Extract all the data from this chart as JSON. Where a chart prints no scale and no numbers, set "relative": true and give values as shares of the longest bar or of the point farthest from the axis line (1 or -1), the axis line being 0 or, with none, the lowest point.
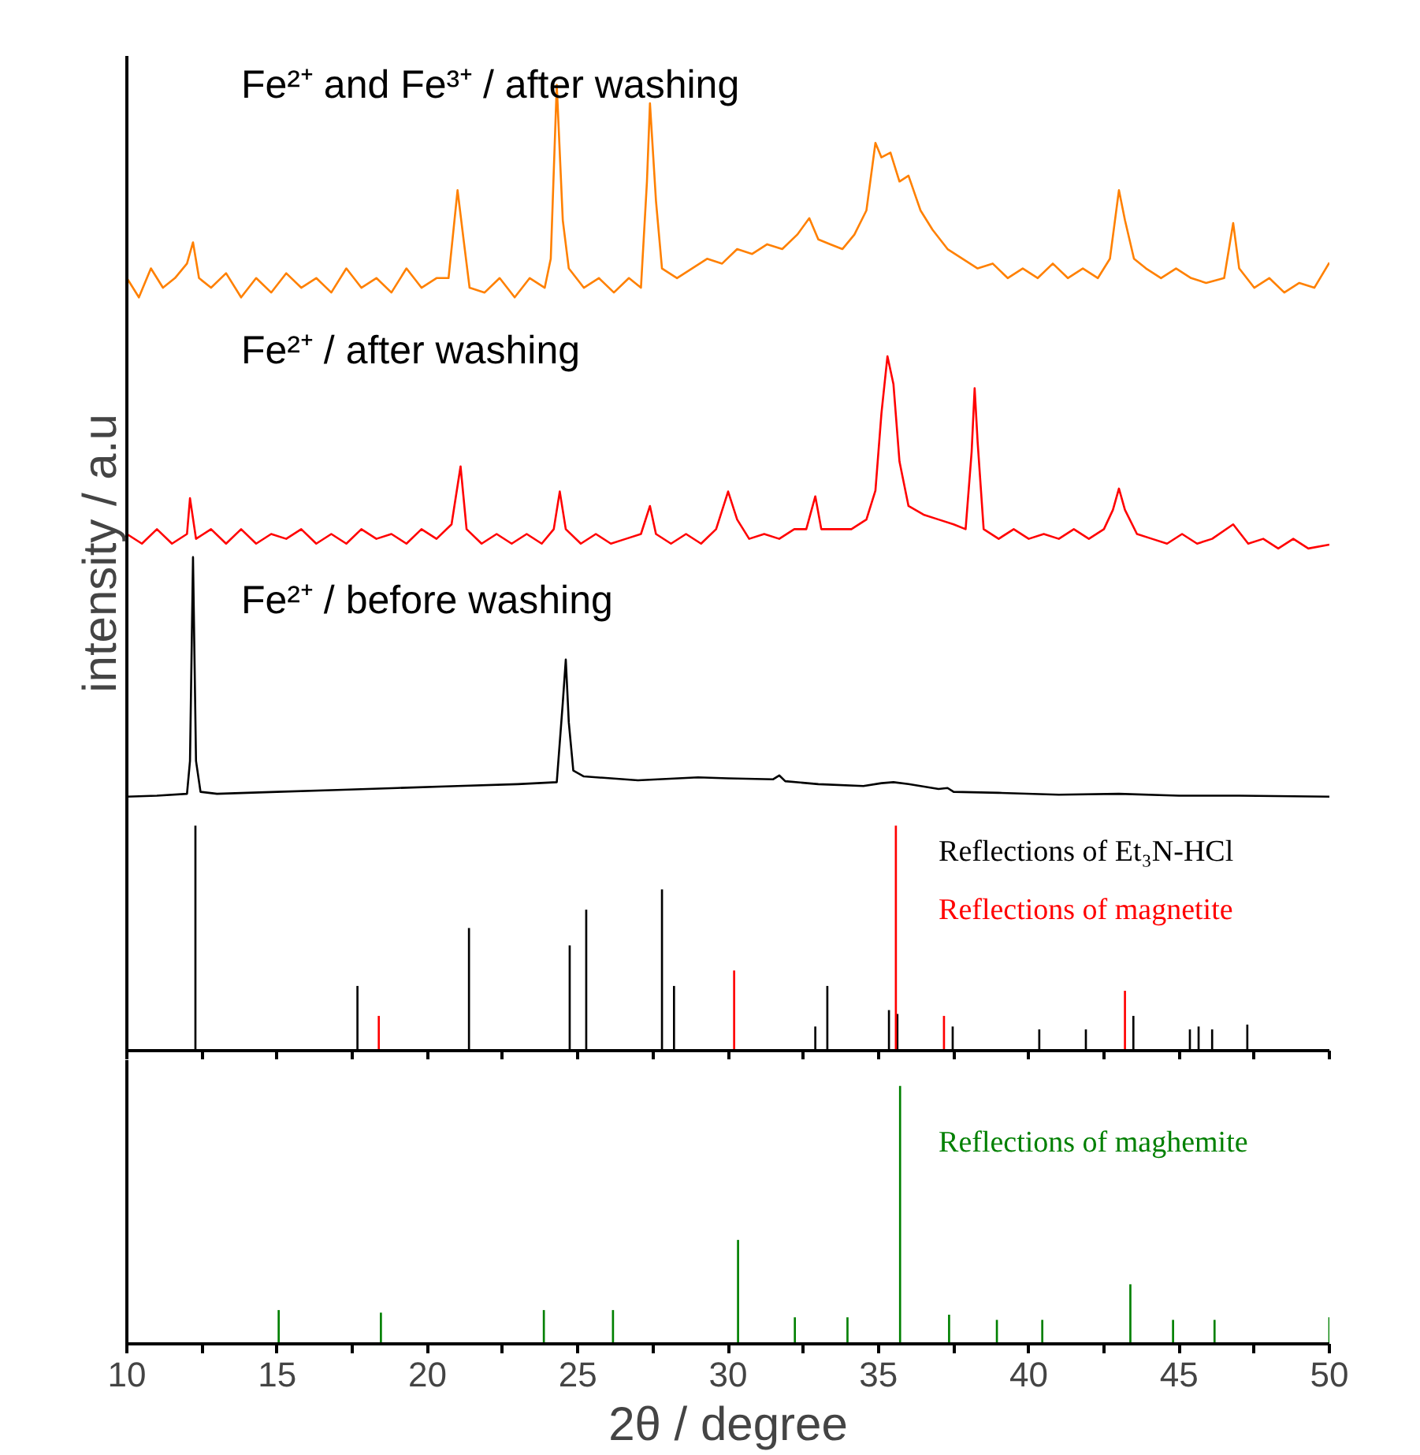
{
  "chart_data": [
    {
      "type": "line",
      "relative": true,
      "ylabel": "intensity / a.u",
      "annotations": [
        "Fe²⁺ and Fe³⁺ / after washing",
        "Fe²⁺ / after washing",
        "Fe²⁺ / before washing",
        "Reflections of Et₃N-HCl"
      ],
      "xlim": [
        10,
        50
      ],
      "xticks": [
        10,
        {
          "value": 12.5,
          "label": null
        },
        15,
        {
          "value": 17.5,
          "label": null
        },
        20,
        {
          "value": 22.5,
          "label": null
        },
        25,
        {
          "value": 27.5,
          "label": null
        },
        30,
        {
          "value": 32.5,
          "label": null
        },
        35,
        {
          "value": 37.5,
          "label": null
        },
        40,
        {
          "value": 42.5,
          "label": null
        },
        45,
        {
          "value": 47.5,
          "label": null
        },
        50
      ],
      "tick_labels": false,
      "grid": false,
      "series": [
        {
          "color": "#ff8000",
          "x": [
            10.0,
            10.4,
            10.8,
            11.2,
            11.6,
            12.0,
            12.2,
            12.4,
            12.8,
            13.3,
            13.8,
            14.3,
            14.8,
            15.3,
            15.8,
            16.3,
            16.8,
            17.3,
            17.8,
            18.3,
            18.8,
            19.3,
            19.8,
            20.3,
            20.7,
            21.0,
            21.2,
            21.4,
            21.9,
            22.4,
            22.9,
            23.4,
            23.9,
            24.1,
            24.3,
            24.5,
            24.7,
            25.2,
            25.7,
            26.2,
            26.7,
            27.1,
            27.3,
            27.4,
            27.6,
            27.8,
            28.3,
            28.8,
            29.3,
            29.8,
            30.3,
            30.8,
            31.3,
            31.8,
            32.3,
            32.7,
            33.0,
            33.4,
            33.8,
            34.2,
            34.6,
            34.9,
            35.1,
            35.4,
            35.7,
            36.0,
            36.4,
            36.8,
            37.3,
            37.8,
            38.3,
            38.8,
            39.3,
            39.8,
            40.3,
            40.8,
            41.3,
            41.8,
            42.3,
            42.7,
            43.0,
            43.2,
            43.5,
            43.9,
            44.4,
            44.9,
            45.4,
            45.9,
            46.5,
            46.8,
            47.0,
            47.5,
            48.0,
            48.5,
            49.0,
            49.5,
            50.0
          ],
          "values": [
            0.8,
            0.78,
            0.81,
            0.79,
            0.8,
            0.815,
            0.837,
            0.8,
            0.79,
            0.805,
            0.78,
            0.8,
            0.785,
            0.805,
            0.79,
            0.8,
            0.785,
            0.81,
            0.79,
            0.8,
            0.785,
            0.81,
            0.79,
            0.8,
            0.8,
            0.891,
            0.84,
            0.79,
            0.785,
            0.8,
            0.78,
            0.8,
            0.79,
            0.82,
            1.0,
            0.86,
            0.81,
            0.79,
            0.8,
            0.785,
            0.8,
            0.79,
            0.9,
            0.981,
            0.88,
            0.81,
            0.8,
            0.81,
            0.82,
            0.815,
            0.83,
            0.825,
            0.835,
            0.83,
            0.845,
            0.862,
            0.84,
            0.835,
            0.83,
            0.845,
            0.87,
            0.94,
            0.925,
            0.93,
            0.9,
            0.906,
            0.87,
            0.85,
            0.83,
            0.82,
            0.81,
            0.815,
            0.8,
            0.81,
            0.8,
            0.815,
            0.8,
            0.81,
            0.8,
            0.82,
            0.891,
            0.86,
            0.82,
            0.81,
            0.8,
            0.81,
            0.8,
            0.795,
            0.8,
            0.857,
            0.81,
            0.79,
            0.8,
            0.785,
            0.795,
            0.79,
            0.816
          ]
        },
        {
          "color": "#ff0000",
          "x": [
            10.0,
            10.5,
            11.0,
            11.5,
            12.0,
            12.1,
            12.3,
            12.8,
            13.3,
            13.8,
            14.3,
            14.8,
            15.3,
            15.8,
            16.3,
            16.8,
            17.3,
            17.8,
            18.3,
            18.8,
            19.3,
            19.8,
            20.3,
            20.8,
            21.1,
            21.3,
            21.8,
            22.3,
            22.8,
            23.3,
            23.8,
            24.2,
            24.4,
            24.6,
            25.1,
            25.6,
            26.1,
            26.6,
            27.1,
            27.4,
            27.6,
            28.1,
            28.6,
            29.1,
            29.6,
            30.0,
            30.3,
            30.7,
            31.2,
            31.7,
            32.2,
            32.6,
            32.9,
            33.1,
            33.6,
            34.1,
            34.6,
            34.9,
            35.1,
            35.3,
            35.5,
            35.7,
            36.0,
            36.5,
            37.0,
            37.5,
            37.9,
            38.1,
            38.2,
            38.3,
            38.5,
            39.0,
            39.5,
            40.0,
            40.5,
            41.0,
            41.5,
            42.0,
            42.5,
            42.8,
            43.0,
            43.2,
            43.6,
            44.1,
            44.6,
            45.1,
            45.6,
            46.1,
            46.8,
            47.3,
            47.8,
            48.3,
            48.8,
            49.3,
            50.0
          ],
          "values": [
            0.535,
            0.525,
            0.54,
            0.525,
            0.535,
            0.572,
            0.53,
            0.54,
            0.525,
            0.54,
            0.525,
            0.535,
            0.53,
            0.54,
            0.525,
            0.535,
            0.525,
            0.54,
            0.53,
            0.535,
            0.525,
            0.54,
            0.53,
            0.545,
            0.605,
            0.54,
            0.525,
            0.535,
            0.525,
            0.535,
            0.525,
            0.54,
            0.579,
            0.54,
            0.525,
            0.535,
            0.525,
            0.53,
            0.535,
            0.564,
            0.535,
            0.525,
            0.535,
            0.525,
            0.54,
            0.579,
            0.55,
            0.53,
            0.535,
            0.53,
            0.54,
            0.54,
            0.574,
            0.54,
            0.54,
            0.54,
            0.55,
            0.58,
            0.66,
            0.719,
            0.69,
            0.61,
            0.564,
            0.555,
            0.55,
            0.545,
            0.54,
            0.62,
            0.686,
            0.63,
            0.54,
            0.53,
            0.54,
            0.53,
            0.535,
            0.53,
            0.54,
            0.53,
            0.54,
            0.56,
            0.582,
            0.56,
            0.535,
            0.53,
            0.525,
            0.535,
            0.525,
            0.53,
            0.545,
            0.525,
            0.53,
            0.52,
            0.53,
            0.52,
            0.524
          ]
        },
        {
          "color": "#000000",
          "x": [
            10.0,
            11.0,
            12.0,
            12.1,
            12.2,
            12.3,
            12.45,
            13.0,
            15.0,
            17.0,
            19.0,
            21.0,
            23.0,
            24.3,
            24.5,
            24.6,
            24.7,
            24.85,
            25.2,
            27.0,
            29.0,
            30.0,
            31.5,
            31.7,
            31.9,
            33.0,
            34.5,
            35.1,
            35.5,
            36.0,
            37.0,
            37.3,
            37.5,
            39.0,
            41.0,
            43.0,
            45.0,
            47.0,
            50.0
          ],
          "values": [
            0.263,
            0.264,
            0.266,
            0.3,
            0.511,
            0.3,
            0.268,
            0.266,
            0.268,
            0.27,
            0.272,
            0.274,
            0.276,
            0.278,
            0.36,
            0.405,
            0.34,
            0.29,
            0.284,
            0.28,
            0.283,
            0.282,
            0.281,
            0.285,
            0.279,
            0.276,
            0.274,
            0.277,
            0.278,
            0.276,
            0.271,
            0.272,
            0.268,
            0.267,
            0.265,
            0.266,
            0.264,
            0.264,
            0.263
          ]
        },
        {
          "type": "bar",
          "color": "#000000",
          "x": [
            12.28,
            17.67,
            21.38,
            24.73,
            25.28,
            27.8,
            28.2,
            32.9,
            33.3,
            35.35,
            35.63,
            37.47,
            40.35,
            41.9,
            43.48,
            45.36,
            45.65,
            46.1,
            47.27
          ],
          "values": [
            0.233,
            0.067,
            0.127,
            0.109,
            0.146,
            0.167,
            0.067,
            0.025,
            0.067,
            0.042,
            0.038,
            0.025,
            0.022,
            0.022,
            0.036,
            0.022,
            0.025,
            0.022,
            0.027
          ]
        },
        {
          "name": "Reflections of magnetite",
          "type": "bar",
          "color": "#ff0000",
          "x": [
            18.38,
            30.2,
            35.58,
            37.18,
            43.2
          ],
          "values": [
            0.036,
            0.083,
            0.233,
            0.036,
            0.062
          ]
        }
      ]
    },
    {
      "type": "bar",
      "relative": true,
      "xlabel": "2θ / degree",
      "xlim": [
        10,
        50
      ],
      "xticks": [
        10,
        {
          "value": 12.5,
          "label": null
        },
        15,
        {
          "value": 17.5,
          "label": null
        },
        20,
        {
          "value": 22.5,
          "label": null
        },
        25,
        {
          "value": 27.5,
          "label": null
        },
        30,
        {
          "value": 32.5,
          "label": null
        },
        35,
        {
          "value": 37.5,
          "label": null
        },
        40,
        {
          "value": 42.5,
          "label": null
        },
        45,
        {
          "value": 47.5,
          "label": null
        },
        50
      ],
      "tick_labels": "x",
      "grid": false,
      "series": [
        {
          "name": "Reflections of maghemite",
          "color": "#008000",
          "x": [
            15.05,
            18.45,
            23.87,
            26.17,
            30.33,
            32.22,
            33.97,
            35.72,
            37.35,
            38.94,
            40.45,
            43.38,
            44.8,
            46.18,
            50.0
          ],
          "values": [
            0.131,
            0.121,
            0.131,
            0.131,
            0.403,
            0.103,
            0.103,
            1.0,
            0.113,
            0.093,
            0.093,
            0.231,
            0.093,
            0.093,
            0.103
          ]
        }
      ]
    }
  ]
}
